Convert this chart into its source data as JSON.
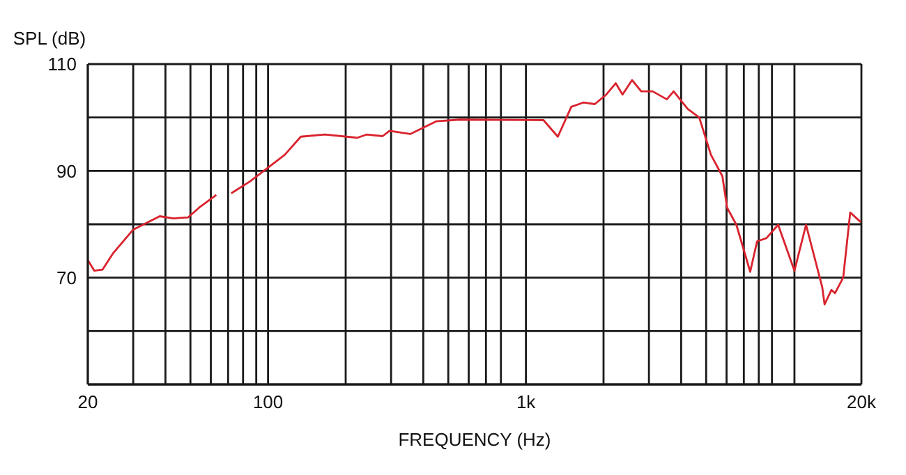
{
  "chart_data": {
    "type": "line",
    "xlabel": "FREQUENCY (Hz)",
    "ylabel": "SPL (dB)",
    "log": "x",
    "grid": true,
    "xlim": [
      20,
      20000
    ],
    "ylim": [
      50,
      110
    ],
    "xticks": [
      20,
      {
        "value": 30,
        "label": null
      },
      {
        "value": 40,
        "label": null
      },
      {
        "value": 50,
        "label": null
      },
      {
        "value": 60,
        "label": null
      },
      {
        "value": 70,
        "label": null
      },
      {
        "value": 80,
        "label": null
      },
      {
        "value": 90,
        "label": null
      },
      100,
      {
        "value": 200,
        "label": null
      },
      {
        "value": 300,
        "label": null
      },
      {
        "value": 400,
        "label": null
      },
      {
        "value": 500,
        "label": null
      },
      {
        "value": 600,
        "label": null
      },
      {
        "value": 700,
        "label": null
      },
      {
        "value": 800,
        "label": null
      },
      {
        "value": 1000,
        "label": "1k"
      },
      {
        "value": 2000,
        "label": null
      },
      {
        "value": 3000,
        "label": null
      },
      {
        "value": 4000,
        "label": null
      },
      {
        "value": 5000,
        "label": null
      },
      {
        "value": 6000,
        "label": null
      },
      {
        "value": 7000,
        "label": null
      },
      {
        "value": 8000,
        "label": null
      },
      {
        "value": 9000,
        "label": null
      },
      {
        "value": 11000,
        "label": null
      },
      {
        "value": 20000,
        "label": "20k"
      }
    ],
    "yticks": [
      {
        "value": 50,
        "label": null
      },
      {
        "value": 60,
        "label": null
      },
      70,
      {
        "value": 80,
        "label": null
      },
      90,
      {
        "value": 100,
        "label": null
      },
      110
    ],
    "x": [
      20,
      21.2,
      22.8,
      25,
      30,
      38,
      43,
      49,
      54,
      63,
      67,
      72,
      85,
      100,
      116,
      134,
      166,
      222,
      241,
      278,
      296,
      356,
      450,
      555,
      1170,
      1330,
      1500,
      1670,
      1850,
      2050,
      2230,
      2370,
      2580,
      2800,
      3100,
      3520,
      3740,
      4240,
      4700,
      5220,
      5780,
      6030,
      6550,
      7410,
      7880,
      8570,
      9510,
      11000,
      12200,
      14100,
      14400,
      15300,
      15800,
      17000,
      18100,
      19900
    ],
    "series": [
      {
        "color": "#d9232e",
        "values": [
          73.3,
          71.3,
          71.5,
          74.5,
          79,
          81.5,
          81.1,
          81.3,
          83.1,
          85.5,
          null,
          85.8,
          88,
          90.6,
          93,
          96.4,
          96.8,
          96.2,
          96.8,
          96.5,
          97.5,
          96.9,
          99.3,
          99.6,
          99.5,
          96.4,
          102,
          102.8,
          102.5,
          104.3,
          106.4,
          104.3,
          107,
          104.9,
          104.9,
          103.4,
          104.9,
          101.6,
          100,
          93,
          89,
          83.1,
          79.9,
          71.1,
          76.8,
          77.4,
          79.9,
          71.3,
          79.9,
          68.2,
          65,
          67.7,
          67.1,
          70,
          82.2,
          80.4
        ]
      }
    ]
  }
}
